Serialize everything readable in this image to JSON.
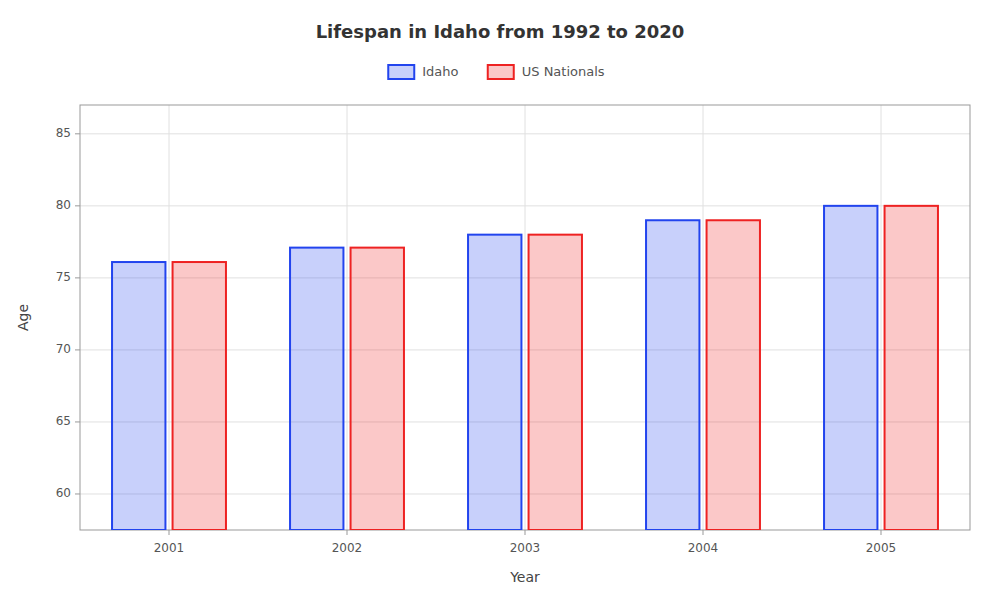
{
  "chart_data": {
    "type": "bar",
    "title": "Lifespan in Idaho from 1992 to 2020",
    "x_label": "Year",
    "y_label": "Age",
    "categories": [
      2001,
      2002,
      2003,
      2004,
      2005
    ],
    "series": [
      {
        "name": "Idaho",
        "color": "#2244ee",
        "values": [
          76.1,
          77.1,
          78.0,
          79.0,
          80.0
        ]
      },
      {
        "name": "US Nationals",
        "color": "#ee2222",
        "values": [
          76.1,
          77.1,
          78.0,
          79.0,
          80.0
        ]
      }
    ],
    "ylim": [
      57.5,
      87
    ],
    "yticks": [
      60,
      65,
      70,
      75,
      80,
      85
    ],
    "grid": true,
    "legend": "top"
  }
}
